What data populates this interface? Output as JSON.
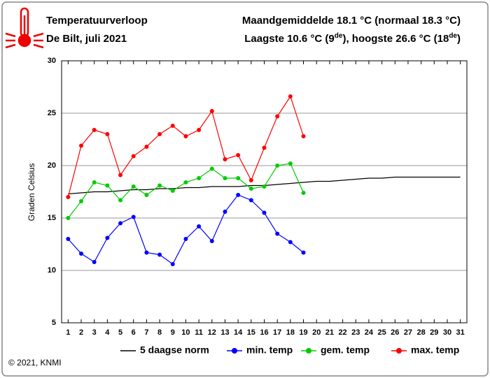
{
  "chart_data": {
    "type": "line",
    "title": "Temperatuurverloop",
    "subtitle": "De Bilt, juli 2021",
    "summary": "Maandgemiddelde 18.1 °C (normaal 18.3 °C)",
    "extremes": [
      "Laagste 10.6 °C (9",
      "de",
      "), hoogste 26.6 °C (18",
      "de",
      ")"
    ],
    "ylabel": "Graden Celsius",
    "credit": "© 2021, KNMI",
    "x": [
      1,
      2,
      3,
      4,
      5,
      6,
      7,
      8,
      9,
      10,
      11,
      12,
      13,
      14,
      15,
      16,
      17,
      18,
      19,
      20,
      21,
      22,
      23,
      24,
      25,
      26,
      27,
      28,
      29,
      30,
      31
    ],
    "xlim": [
      0.5,
      31.5
    ],
    "xticks": [
      1,
      2,
      3,
      4,
      5,
      6,
      7,
      8,
      9,
      10,
      11,
      12,
      13,
      14,
      15,
      16,
      17,
      18,
      19,
      20,
      21,
      22,
      23,
      24,
      25,
      26,
      27,
      28,
      29,
      30,
      31
    ],
    "ylim": [
      5,
      30
    ],
    "yticks": [
      5,
      10,
      15,
      20,
      25,
      30
    ],
    "grid": true,
    "legend": "bottom",
    "series": [
      {
        "name": "5 daagse norm",
        "color": "#000000",
        "markers": false,
        "values": [
          17.3,
          17.4,
          17.5,
          17.5,
          17.6,
          17.7,
          17.7,
          17.8,
          17.8,
          17.9,
          17.9,
          18.0,
          18.0,
          18.0,
          18.1,
          18.1,
          18.2,
          18.3,
          18.4,
          18.5,
          18.5,
          18.6,
          18.7,
          18.8,
          18.8,
          18.9,
          18.9,
          18.9,
          18.9,
          18.9,
          18.9
        ]
      },
      {
        "name": "min. temp",
        "color": "#0000ff",
        "markers": true,
        "values": [
          13.0,
          11.6,
          10.8,
          13.1,
          14.5,
          15.1,
          11.7,
          11.5,
          10.6,
          13.0,
          14.2,
          12.8,
          15.6,
          17.2,
          16.7,
          15.5,
          13.5,
          12.7,
          11.7,
          null,
          null,
          null,
          null,
          null,
          null,
          null,
          null,
          null,
          null,
          null,
          null
        ]
      },
      {
        "name": "gem. temp",
        "color": "#00cc00",
        "markers": true,
        "values": [
          15.0,
          16.6,
          18.4,
          18.1,
          16.7,
          18.0,
          17.2,
          18.1,
          17.6,
          18.4,
          18.8,
          19.7,
          18.8,
          18.8,
          17.8,
          18.0,
          20.0,
          20.2,
          17.4,
          null,
          null,
          null,
          null,
          null,
          null,
          null,
          null,
          null,
          null,
          null,
          null
        ]
      },
      {
        "name": "max. temp",
        "color": "#ff0000",
        "markers": true,
        "values": [
          17.0,
          21.9,
          23.4,
          23.0,
          19.1,
          20.9,
          21.8,
          23.0,
          23.8,
          22.8,
          23.4,
          25.2,
          20.6,
          21.0,
          18.6,
          21.7,
          24.7,
          26.6,
          22.8,
          null,
          null,
          null,
          null,
          null,
          null,
          null,
          null,
          null,
          null,
          null,
          null
        ]
      }
    ]
  }
}
